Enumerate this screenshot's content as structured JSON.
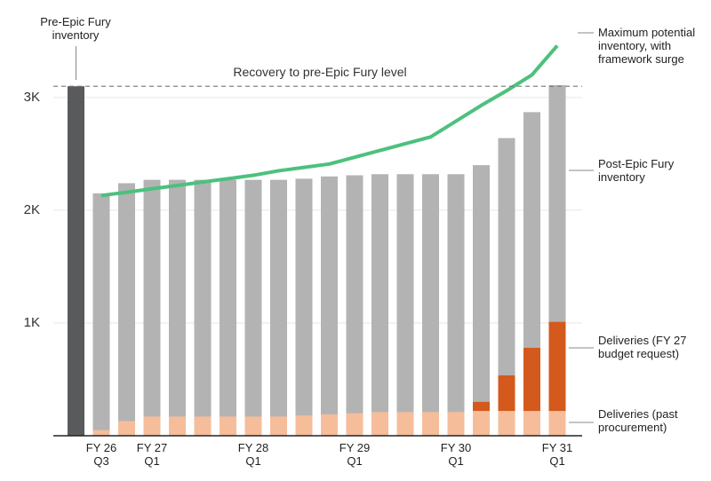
{
  "chart_data": {
    "type": "bar",
    "categories": [
      null,
      "FY 26 Q3",
      null,
      "FY 27 Q1",
      null,
      null,
      null,
      "FY 28 Q1",
      null,
      null,
      null,
      "FY 29 Q1",
      null,
      null,
      null,
      "FY 30 Q1",
      null,
      null,
      null,
      "FY 31 Q1"
    ],
    "series": [
      {
        "name": "Pre-Epic Fury inventory",
        "kind": "bar",
        "color": "#585a5c",
        "values": [
          3100,
          null,
          null,
          null,
          null,
          null,
          null,
          null,
          null,
          null,
          null,
          null,
          null,
          null,
          null,
          null,
          null,
          null,
          null,
          null
        ]
      },
      {
        "name": "Post-Epic Fury inventory",
        "kind": "bar",
        "color": "#b3b3b3",
        "values": [
          null,
          2150,
          2240,
          2270,
          2270,
          2270,
          2270,
          2270,
          2270,
          2280,
          2300,
          2310,
          2320,
          2320,
          2320,
          2320,
          2400,
          2640,
          2870,
          3110
        ]
      },
      {
        "name": "Deliveries (past procurement)",
        "kind": "bar",
        "color": "#f6bd9b",
        "values": [
          null,
          50,
          130,
          170,
          170,
          170,
          170,
          170,
          170,
          180,
          190,
          200,
          210,
          210,
          210,
          210,
          220,
          220,
          220,
          220
        ]
      },
      {
        "name": "Deliveries (FY 27 budget request)",
        "kind": "bar",
        "color": "#d35a1c",
        "values": [
          null,
          null,
          null,
          null,
          null,
          null,
          null,
          null,
          null,
          null,
          null,
          null,
          null,
          null,
          null,
          null,
          80,
          315,
          560,
          790
        ]
      },
      {
        "name": "Maximum potential inventory, with framework surge",
        "kind": "line",
        "color": "#4cc17d",
        "values": [
          null,
          2130,
          2160,
          2190,
          2220,
          2250,
          2280,
          2310,
          2350,
          2380,
          2410,
          2470,
          2530,
          2590,
          2650,
          2790,
          2930,
          3060,
          3200,
          3460
        ]
      }
    ],
    "reference_line": {
      "value": 3100,
      "label": "Recovery to pre-Epic Fury level"
    },
    "ylim": [
      0,
      3550
    ],
    "yticks": [
      {
        "value": 1000,
        "label": "1K"
      },
      {
        "value": 2000,
        "label": "2K"
      },
      {
        "value": 3000,
        "label": "3K"
      }
    ],
    "grid": true
  }
}
